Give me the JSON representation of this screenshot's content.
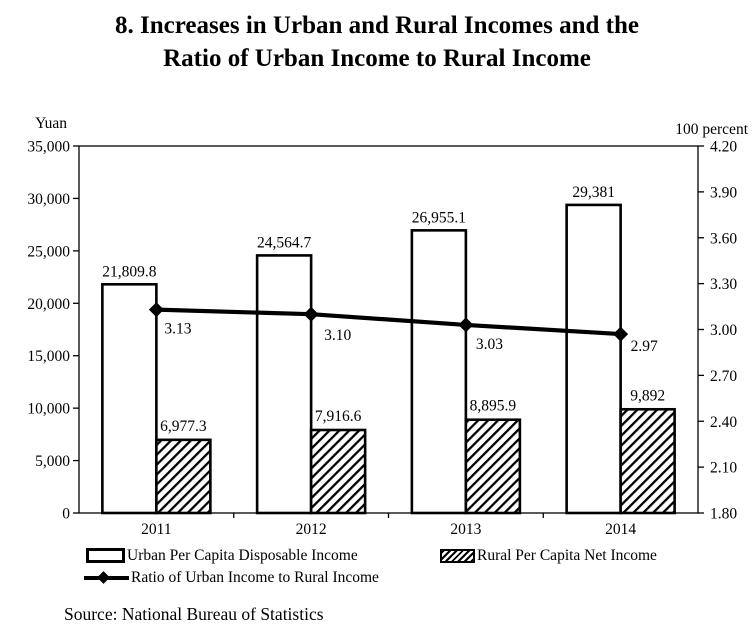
{
  "title": {
    "line1": "8. Increases in Urban and Rural Incomes and the",
    "line2": "Ratio of Urban Income to Rural Income"
  },
  "source": "Source: National Bureau of Statistics",
  "chart_data": {
    "type": "bar",
    "subtype": "bar+line combo, dual axis",
    "categories": [
      "2011",
      "2012",
      "2013",
      "2014"
    ],
    "series": [
      {
        "name": "Urban Per Capita Disposable Income",
        "type": "bar",
        "style": "white-outline",
        "axis": "left",
        "values": [
          21809.8,
          24564.7,
          26955.1,
          29381
        ],
        "labels": [
          "21,809.8",
          "24,564.7",
          "26,955.1",
          "29,381"
        ]
      },
      {
        "name": "Rural Per Capita Net Income",
        "type": "bar",
        "style": "diagonal-hatch",
        "axis": "left",
        "values": [
          6977.3,
          7916.6,
          8895.9,
          9892
        ],
        "labels": [
          "6,977.3",
          "7,916.6",
          "8,895.9",
          "9,892"
        ]
      },
      {
        "name": "Ratio of Urban Income to Rural Income",
        "type": "line",
        "style": "thick-black-diamond-markers",
        "axis": "right",
        "values": [
          3.13,
          3.1,
          3.03,
          2.97
        ],
        "labels": [
          "3.13",
          "3.10",
          "3.03",
          "2.97"
        ]
      }
    ],
    "left_axis": {
      "unit": "Yuan",
      "min": 0,
      "max": 35000,
      "step": 5000,
      "tick_labels": [
        "35,000",
        "30,000",
        "25,000",
        "20,000",
        "15,000",
        "10,000",
        "5,000",
        "0"
      ]
    },
    "right_axis": {
      "unit": "100 percent",
      "min": 1.8,
      "max": 4.2,
      "step": 0.3,
      "tick_labels": [
        "4.20",
        "3.90",
        "3.60",
        "3.30",
        "3.00",
        "2.70",
        "2.40",
        "2.10",
        "1.80"
      ]
    },
    "grid": false,
    "legend_position": "bottom",
    "colors": {
      "foreground": "#000000",
      "background": "#ffffff"
    }
  }
}
